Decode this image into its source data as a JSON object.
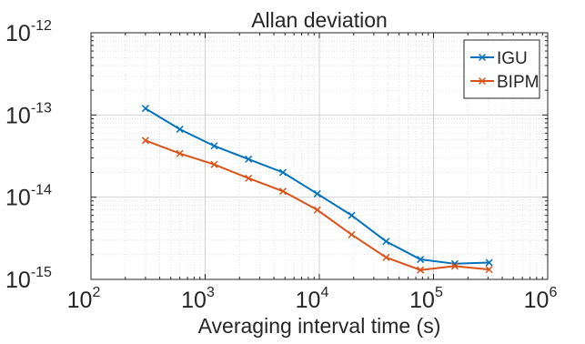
{
  "chart_data": {
    "type": "line",
    "title": "Allan deviation",
    "xlabel": "Averaging interval time (s)",
    "ylabel": "",
    "xscale": "log",
    "yscale": "log",
    "xlim": [
      100,
      1000000
    ],
    "ylim": [
      1e-15,
      1e-12
    ],
    "grid": true,
    "minor_grid": true,
    "legend_position": "top-right",
    "x_ticks": [
      {
        "value": 100,
        "base": "10",
        "exp": "2"
      },
      {
        "value": 1000,
        "base": "10",
        "exp": "3"
      },
      {
        "value": 10000,
        "base": "10",
        "exp": "4"
      },
      {
        "value": 100000,
        "base": "10",
        "exp": "5"
      },
      {
        "value": 1000000,
        "base": "10",
        "exp": "6"
      }
    ],
    "y_ticks": [
      {
        "value": 1e-15,
        "base": "10",
        "exp": "-15"
      },
      {
        "value": 1e-14,
        "base": "10",
        "exp": "-14"
      },
      {
        "value": 1e-13,
        "base": "10",
        "exp": "-13"
      },
      {
        "value": 1e-12,
        "base": "10",
        "exp": "-12"
      }
    ],
    "x": [
      300,
      600,
      1200,
      2400,
      4800,
      9600,
      19200,
      38400,
      76800,
      153600,
      307200
    ],
    "series": [
      {
        "name": "IGU",
        "color": "#0072BD",
        "marker": "x",
        "values": [
          1.2e-13,
          6.7e-14,
          4.2e-14,
          2.9e-14,
          2e-14,
          1.1e-14,
          6e-15,
          2.9e-15,
          1.75e-15,
          1.55e-15,
          1.6e-15
        ]
      },
      {
        "name": "BIPM",
        "color": "#D95319",
        "marker": "x",
        "values": [
          4.9e-14,
          3.4e-14,
          2.5e-14,
          1.7e-14,
          1.18e-14,
          7e-15,
          3.5e-15,
          1.85e-15,
          1.3e-15,
          1.45e-15,
          1.32e-15
        ]
      }
    ]
  }
}
